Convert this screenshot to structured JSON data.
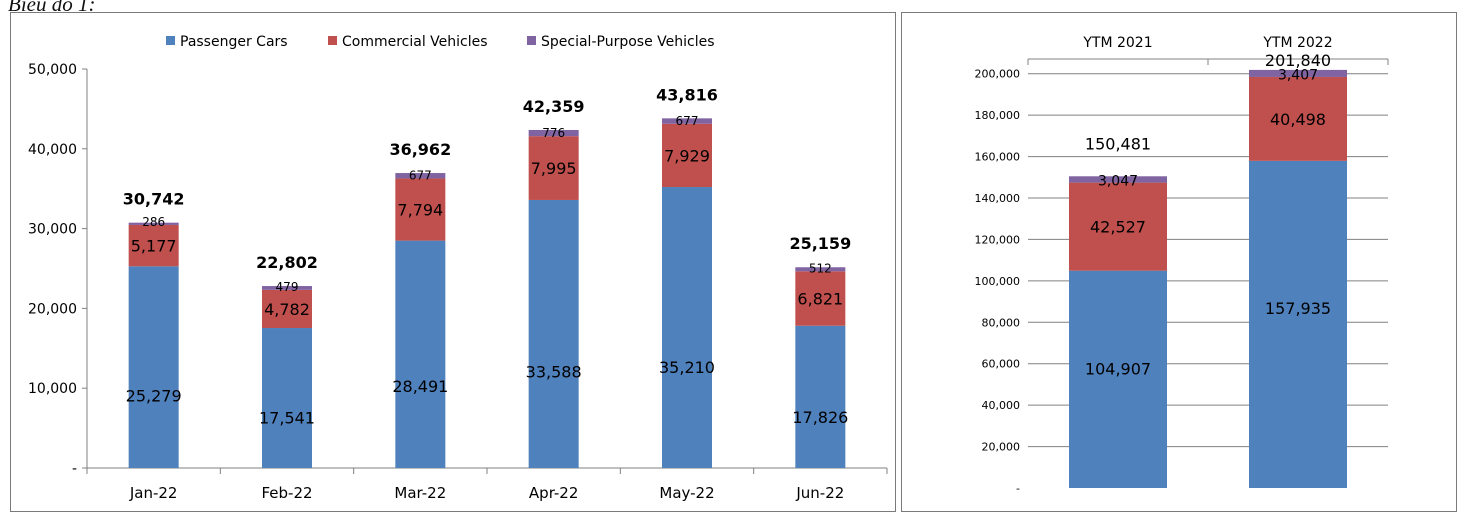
{
  "caption": "Biểu đồ 1:",
  "colors": {
    "passenger": "#4f81bd",
    "commercial": "#c0504d",
    "special": "#8064a2",
    "axis": "#808080"
  },
  "chart_data": [
    {
      "type": "bar",
      "stacked": true,
      "categories": [
        "Jan-22",
        "Feb-22",
        "Mar-22",
        "Apr-22",
        "May-22",
        "Jun-22"
      ],
      "series": [
        {
          "name": "Passenger Cars",
          "values": [
            25279,
            17541,
            28491,
            33588,
            35210,
            17826
          ],
          "labels": [
            "25,279",
            "17,541",
            "28,491",
            "33,588",
            "35,210",
            "17,826"
          ]
        },
        {
          "name": "Commercial Vehicles",
          "values": [
            5177,
            4782,
            7794,
            7995,
            7929,
            6821
          ],
          "labels": [
            "5,177",
            "4,782",
            "7,794",
            "7,995",
            "7,929",
            "6,821"
          ]
        },
        {
          "name": "Special-Purpose Vehicles",
          "values": [
            286,
            479,
            677,
            776,
            677,
            512
          ],
          "labels": [
            "286",
            "479",
            "677",
            "776",
            "677",
            "512"
          ]
        }
      ],
      "totals": [
        30742,
        22802,
        36962,
        42359,
        43816,
        25159
      ],
      "total_labels": [
        "30,742",
        "22,802",
        "36,962",
        "42,359",
        "43,816",
        "25,159"
      ],
      "ylim": [
        0,
        50000
      ],
      "yticks": [
        0,
        10000,
        20000,
        30000,
        40000,
        50000
      ],
      "ytick_labels": [
        "-",
        "10,000",
        "20,000",
        "30,000",
        "40,000",
        "50,000"
      ],
      "legend": [
        "Passenger Cars",
        "Commercial Vehicles",
        "Special-Purpose Vehicles"
      ],
      "legend_position": "top-center",
      "title": "",
      "xlabel": "",
      "ylabel": "",
      "grid": false
    },
    {
      "type": "bar",
      "stacked": true,
      "categories": [
        "YTM 2021",
        "YTM 2022"
      ],
      "category_axis_position": "top",
      "series": [
        {
          "name": "Passenger Cars",
          "values": [
            104907,
            157935
          ],
          "labels": [
            "104,907",
            "157,935"
          ]
        },
        {
          "name": "Commercial Vehicles",
          "values": [
            42527,
            40498
          ],
          "labels": [
            "42,527",
            "40,498"
          ]
        },
        {
          "name": "Special-Purpose Vehicles",
          "values": [
            3047,
            3407
          ],
          "labels": [
            "3,047",
            "3,407"
          ]
        }
      ],
      "totals": [
        150481,
        201840
      ],
      "total_labels": [
        "150,481",
        "201,840"
      ],
      "ylim": [
        0,
        210000
      ],
      "yticks": [
        0,
        20000,
        40000,
        60000,
        80000,
        100000,
        120000,
        140000,
        160000,
        180000,
        200000
      ],
      "ytick_labels": [
        "-",
        "20,000",
        "40,000",
        "60,000",
        "80,000",
        "100,000",
        "120,000",
        "140,000",
        "160,000",
        "180,000",
        "200,000"
      ],
      "title": "",
      "xlabel": "",
      "ylabel": "",
      "grid": true
    }
  ]
}
